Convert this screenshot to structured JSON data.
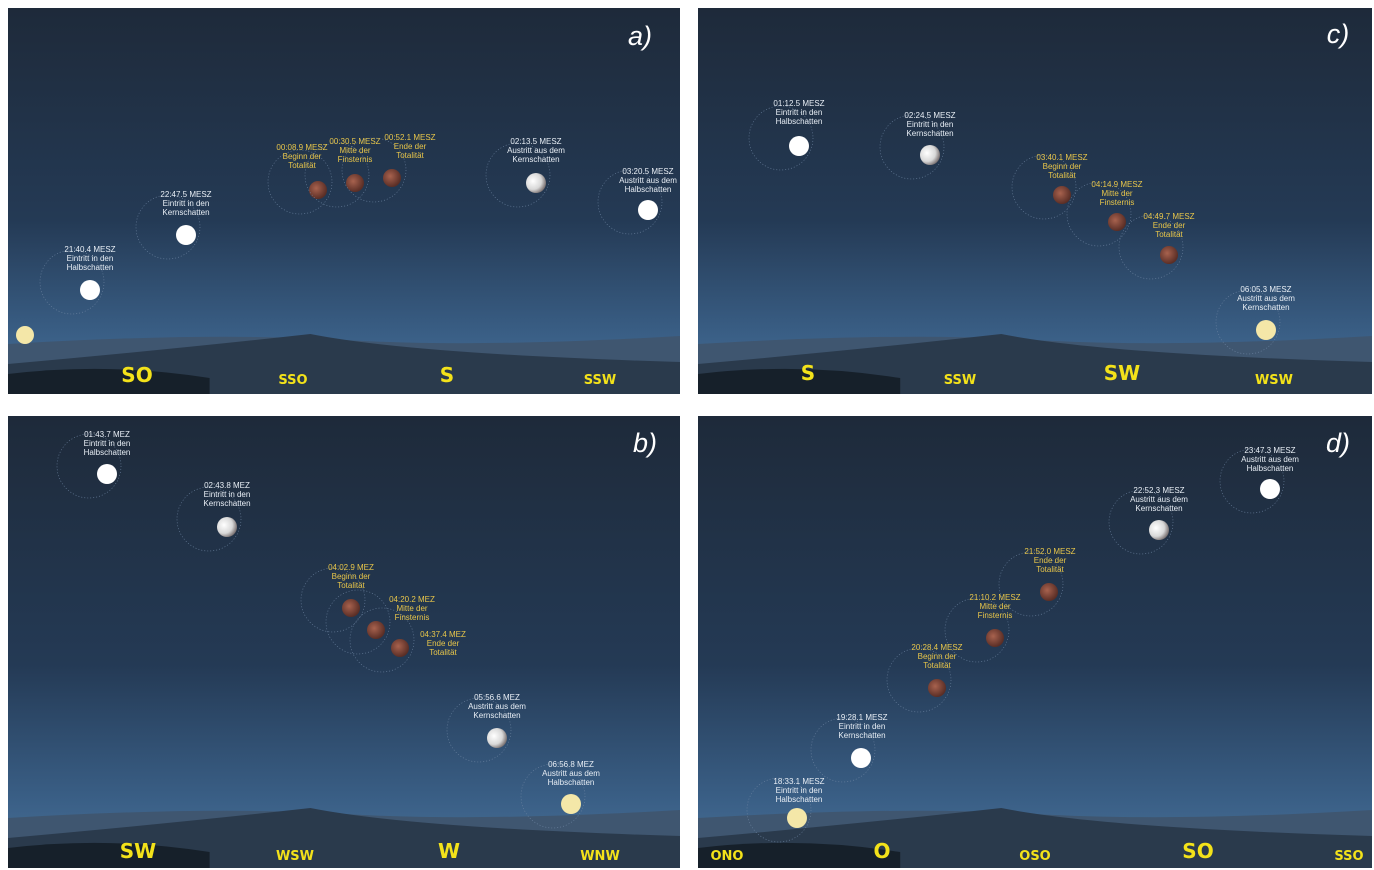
{
  "panels": [
    {
      "label": "a)",
      "events": [
        {
          "lines": [
            "21:40.4 MESZ",
            "Eintritt in den",
            "Halbschatten"
          ]
        },
        {
          "lines": [
            "22:47.5 MESZ",
            "Eintritt in den",
            "Kernschatten"
          ]
        },
        {
          "lines": [
            "00:08.9 MESZ",
            "Beginn der",
            "Totalität"
          ]
        },
        {
          "lines": [
            "00:30.5 MESZ",
            "Mitte der",
            "Finsternis"
          ]
        },
        {
          "lines": [
            "00:52.1 MESZ",
            "Ende der",
            "Totalität"
          ]
        },
        {
          "lines": [
            "02:13.5 MESZ",
            "Austritt aus dem",
            "Kernschatten"
          ]
        },
        {
          "lines": [
            "03:20.5 MESZ",
            "Austritt aus dem",
            "Halbschatten"
          ]
        }
      ],
      "directions": [
        "SO",
        "SSO",
        "S",
        "SSW"
      ]
    },
    {
      "label": "b)",
      "events": [
        {
          "lines": [
            "01:43.7 MEZ",
            "Eintritt in den",
            "Halbschatten"
          ]
        },
        {
          "lines": [
            "02:43.8 MEZ",
            "Eintritt in den",
            "Kernschatten"
          ]
        },
        {
          "lines": [
            "04:02.9 MEZ",
            "Beginn der",
            "Totalität"
          ]
        },
        {
          "lines": [
            "04:20.2 MEZ",
            "Mitte der",
            "Finsternis"
          ]
        },
        {
          "lines": [
            "04:37.4 MEZ",
            "Ende der",
            "Totalität"
          ]
        },
        {
          "lines": [
            "05:56.6 MEZ",
            "Austritt aus dem",
            "Kernschatten"
          ]
        },
        {
          "lines": [
            "06:56.8 MEZ",
            "Austritt aus dem",
            "Halbschatten"
          ]
        }
      ],
      "directions": [
        "SW",
        "WSW",
        "W",
        "WNW"
      ]
    },
    {
      "label": "c)",
      "events": [
        {
          "lines": [
            "01:12.5 MESZ",
            "Eintritt in den",
            "Halbschatten"
          ]
        },
        {
          "lines": [
            "02:24.5 MESZ",
            "Eintritt in den",
            "Kernschatten"
          ]
        },
        {
          "lines": [
            "03:40.1 MESZ",
            "Beginn der",
            "Totalität"
          ]
        },
        {
          "lines": [
            "04:14.9 MESZ",
            "Mitte der",
            "Finsternis"
          ]
        },
        {
          "lines": [
            "04:49.7 MESZ",
            "Ende der",
            "Totalität"
          ]
        },
        {
          "lines": [
            "06:05.3 MESZ",
            "Austritt aus dem",
            "Kernschatten"
          ]
        }
      ],
      "directions": [
        "S",
        "SSW",
        "SW",
        "WSW"
      ]
    },
    {
      "label": "d)",
      "events": [
        {
          "lines": [
            "18:33.1 MESZ",
            "Eintritt in den",
            "Halbschatten"
          ]
        },
        {
          "lines": [
            "19:28.1 MESZ",
            "Eintritt in den",
            "Kernschatten"
          ]
        },
        {
          "lines": [
            "20:28.4 MESZ",
            "Beginn der",
            "Totalität"
          ]
        },
        {
          "lines": [
            "21:10.2 MESZ",
            "Mitte der",
            "Finsternis"
          ]
        },
        {
          "lines": [
            "21:52.0 MESZ",
            "Ende der",
            "Totalität"
          ]
        },
        {
          "lines": [
            "22:52.3 MESZ",
            "Austritt aus dem",
            "Kernschatten"
          ]
        },
        {
          "lines": [
            "23:47.3 MESZ",
            "Austritt aus dem",
            "Halbschatten"
          ]
        }
      ],
      "directions": [
        "ONO",
        "O",
        "OSO",
        "SO",
        "SSO"
      ]
    }
  ]
}
